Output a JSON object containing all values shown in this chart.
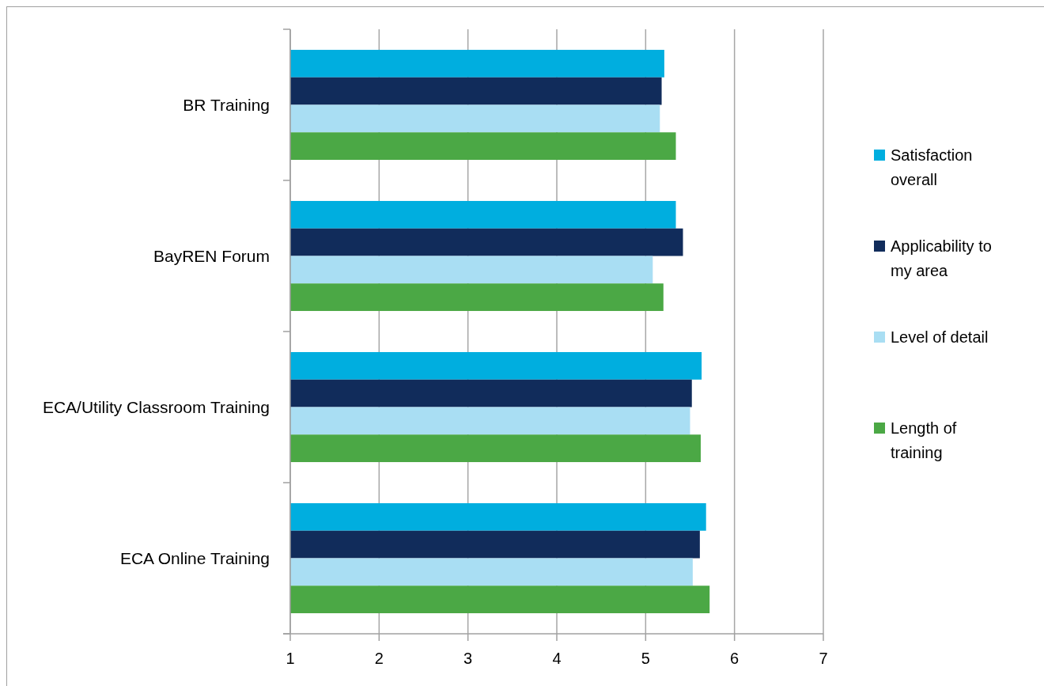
{
  "chart_data": {
    "type": "bar",
    "orientation": "horizontal",
    "categories": [
      "BR Training",
      "BayREN Forum",
      "ECA/Utility Classroom Training",
      "ECA Online Training"
    ],
    "series": [
      {
        "name": "Satisfaction overall",
        "color": "#00aedf",
        "values": [
          5.21,
          5.34,
          5.63,
          5.68
        ]
      },
      {
        "name": "Applicability to my area",
        "color": "#112c5b",
        "values": [
          5.18,
          5.42,
          5.52,
          5.61
        ]
      },
      {
        "name": "Level of detail",
        "color": "#a9def3",
        "values": [
          5.16,
          5.08,
          5.5,
          5.53
        ]
      },
      {
        "name": "Length of training",
        "color": "#4ba845",
        "values": [
          5.34,
          5.2,
          5.62,
          5.72
        ]
      }
    ],
    "xlim": [
      1,
      7
    ],
    "xticks": [
      1,
      2,
      3,
      4,
      5,
      6,
      7
    ],
    "grid": "x",
    "legend": "right"
  }
}
